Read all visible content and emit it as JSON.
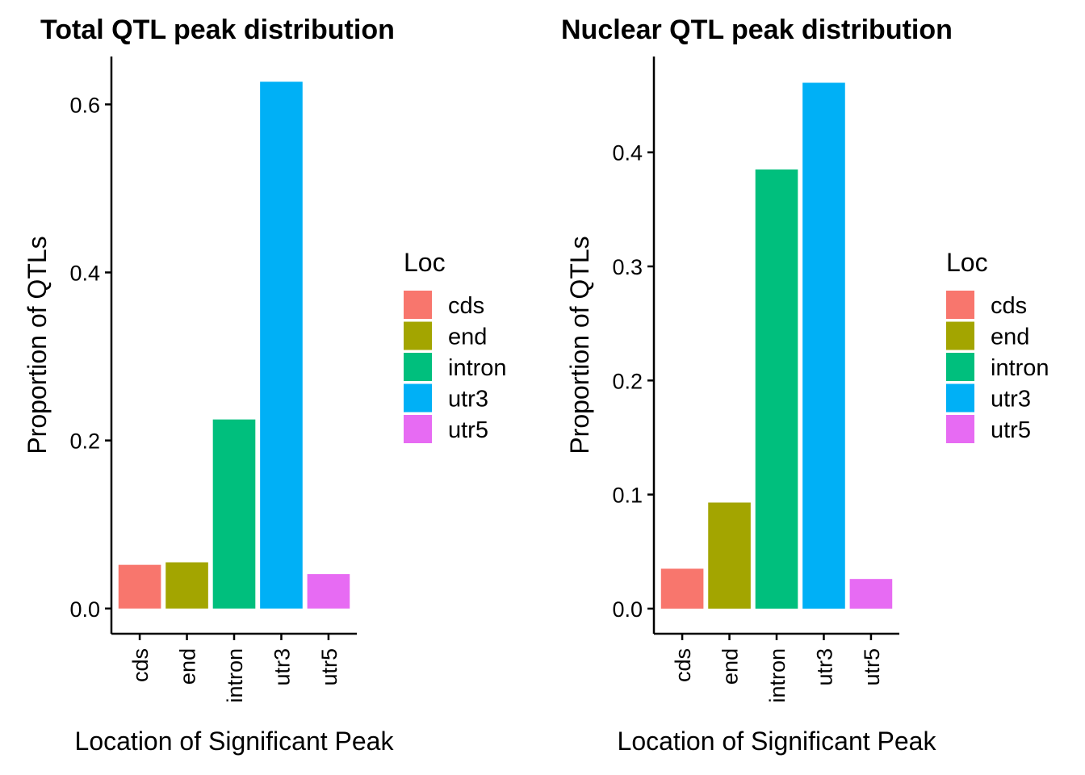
{
  "colors": {
    "cds": "#F8766D",
    "end": "#A3A500",
    "intron": "#00BF7D",
    "utr3": "#00B0F6",
    "utr5": "#E76BF3"
  },
  "chart_data": [
    {
      "type": "bar",
      "title": "Total QTL peak distribution",
      "xlabel": "Location of Significant Peak",
      "ylabel": "Proportion of QTLs",
      "categories": [
        "cds",
        "end",
        "intron",
        "utr3",
        "utr5"
      ],
      "values": [
        0.052,
        0.055,
        0.225,
        0.627,
        0.041
      ],
      "ylim": [
        -0.03,
        0.657
      ],
      "yticks": [
        0.0,
        0.2,
        0.4,
        0.6
      ],
      "ytick_labels": [
        "0.0",
        "0.2",
        "0.4",
        "0.6"
      ],
      "legend": {
        "title": "Loc",
        "entries": [
          "cds",
          "end",
          "intron",
          "utr3",
          "utr5"
        ],
        "position": "right"
      }
    },
    {
      "type": "bar",
      "title": "Nuclear QTL peak distribution",
      "xlabel": "Location of Significant Peak",
      "ylabel": "Proportion of QTLs",
      "categories": [
        "cds",
        "end",
        "intron",
        "utr3",
        "utr5"
      ],
      "values": [
        0.035,
        0.093,
        0.385,
        0.461,
        0.026
      ],
      "ylim": [
        -0.022,
        0.484
      ],
      "yticks": [
        0.0,
        0.1,
        0.2,
        0.3,
        0.4
      ],
      "ytick_labels": [
        "0.0",
        "0.1",
        "0.2",
        "0.3",
        "0.4"
      ],
      "legend": {
        "title": "Loc",
        "entries": [
          "cds",
          "end",
          "intron",
          "utr3",
          "utr5"
        ],
        "position": "right"
      }
    }
  ]
}
